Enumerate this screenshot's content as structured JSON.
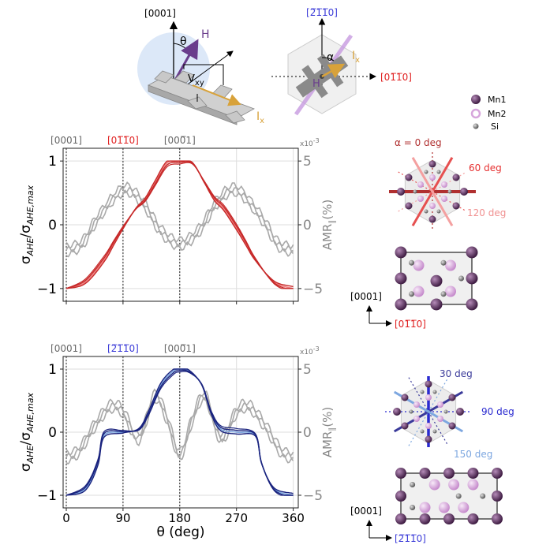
{
  "schematic": {
    "left": {
      "axis_label": "[0001]",
      "theta": "θ",
      "field": "H",
      "voltage_main": "V",
      "voltage_sub": "xy",
      "current_main": "I",
      "current_sub": "x"
    },
    "right": {
      "axis_label": "[2̅1̅1̅0]",
      "axis_label_plain": "[2110]",
      "axis_label2_plain": "[0110]",
      "alpha": "α",
      "field": "H",
      "current_main": "I",
      "current_sub": "x"
    },
    "legend": [
      {
        "label": "Mn1",
        "color": "#5b2c5f"
      },
      {
        "label": "Mn2",
        "color": "#d7a6dc"
      },
      {
        "label": "Si",
        "color": "#8c8c8c"
      }
    ]
  },
  "colors": {
    "red": "#c62828",
    "red_light": "#f08080",
    "blue": "#1a237e",
    "blue_light": "#7da7e0",
    "gray_curve": "#a9a9a9",
    "mn1": "#5b2c5f",
    "mn2": "#d7a6dc",
    "si": "#8c8c8c"
  },
  "chart_data": [
    {
      "type": "line",
      "top_labels": [
        "[0001]",
        "[01̅1̅0]",
        "[000̅1]"
      ],
      "top_labels_base": [
        "[0001]",
        "[0110]",
        "[0001]"
      ],
      "x_ticks": [
        0,
        90,
        180,
        270,
        360
      ],
      "xlim": [
        -5,
        368
      ],
      "ylim": [
        -1.2,
        1.2
      ],
      "yticks_left": [
        -1,
        0,
        1
      ],
      "ylabel_left": "σAHE/σAHE,max",
      "ylim_right": [
        -6,
        6
      ],
      "yticks_right": [
        -5,
        0,
        5
      ],
      "ylabel_right": "AMR∥(%)",
      "right_exponent": "x10-3",
      "series": [
        {
          "kind": "ahe",
          "values": [
            [
              0,
              -1
            ],
            [
              30,
              -0.9
            ],
            [
              60,
              -0.55
            ],
            [
              75,
              -0.3
            ],
            [
              90,
              -0.05
            ],
            [
              110,
              0.25
            ],
            [
              125,
              0.4
            ],
            [
              140,
              0.65
            ],
            [
              160,
              0.97
            ],
            [
              180,
              1.0
            ],
            [
              200,
              0.97
            ],
            [
              220,
              0.65
            ],
            [
              235,
              0.4
            ],
            [
              250,
              0.25
            ],
            [
              270,
              -0.05
            ],
            [
              285,
              -0.3
            ],
            [
              300,
              -0.55
            ],
            [
              330,
              -0.9
            ],
            [
              360,
              -1
            ]
          ]
        },
        {
          "kind": "amr",
          "values": [
            [
              0,
              -2
            ],
            [
              25,
              -1.5
            ],
            [
              50,
              0.5
            ],
            [
              90,
              2.7
            ],
            [
              120,
              1.8
            ],
            [
              150,
              -0.5
            ],
            [
              180,
              -1.5
            ],
            [
              210,
              -0.5
            ],
            [
              240,
              1.8
            ],
            [
              270,
              2.7
            ],
            [
              310,
              0.5
            ],
            [
              335,
              -1.5
            ],
            [
              360,
              -2
            ]
          ]
        }
      ],
      "alpha_diagram_labels": [
        "α = 0 deg",
        "60 deg",
        "120 deg"
      ],
      "unit_cell_axes": [
        "[0001]",
        "[01̅1̅0]"
      ]
    },
    {
      "type": "line",
      "top_labels": [
        "[0001]",
        "[2̅1̅1̅0]",
        "[000̅1]"
      ],
      "top_labels_base": [
        "[0001]",
        "[2110]",
        "[0001]"
      ],
      "x_ticks": [
        0,
        90,
        180,
        270,
        360
      ],
      "xlim": [
        -5,
        368
      ],
      "ylim": [
        -1.2,
        1.2
      ],
      "yticks_left": [
        -1,
        0,
        1
      ],
      "ylabel_left": "σAHE/σAHE,max",
      "ylim_right": [
        -6,
        6
      ],
      "yticks_right": [
        -5,
        0,
        5
      ],
      "ylabel_right": "AMR∥(%)",
      "right_exponent": "x10-3",
      "xlabel": "θ (deg)",
      "series": [
        {
          "kind": "ahe",
          "values": [
            [
              0,
              -1
            ],
            [
              30,
              -0.9
            ],
            [
              50,
              -0.5
            ],
            [
              60,
              -0.05
            ],
            [
              90,
              0.0
            ],
            [
              115,
              0.05
            ],
            [
              130,
              0.3
            ],
            [
              150,
              0.75
            ],
            [
              170,
              0.97
            ],
            [
              180,
              1.0
            ],
            [
              195,
              0.97
            ],
            [
              215,
              0.75
            ],
            [
              230,
              0.3
            ],
            [
              245,
              0.05
            ],
            [
              270,
              0.0
            ],
            [
              300,
              -0.05
            ],
            [
              310,
              -0.5
            ],
            [
              330,
              -0.9
            ],
            [
              360,
              -1
            ]
          ]
        },
        {
          "kind": "amr",
          "values": [
            [
              0,
              -2
            ],
            [
              20,
              -1.5
            ],
            [
              45,
              0.5
            ],
            [
              70,
              2.0
            ],
            [
              90,
              1.6
            ],
            [
              115,
              -0.5
            ],
            [
              140,
              2.8
            ],
            [
              160,
              1.0
            ],
            [
              180,
              -1.8
            ],
            [
              200,
              1.0
            ],
            [
              220,
              2.8
            ],
            [
              245,
              -0.5
            ],
            [
              270,
              1.6
            ],
            [
              290,
              2.0
            ],
            [
              315,
              0.5
            ],
            [
              340,
              -1.5
            ],
            [
              360,
              -2
            ]
          ]
        }
      ],
      "alpha_diagram_labels": [
        "30 deg",
        "90 deg",
        "150 deg"
      ],
      "unit_cell_axes": [
        "[0001]",
        "[2̅1̅1̅0]"
      ]
    }
  ]
}
